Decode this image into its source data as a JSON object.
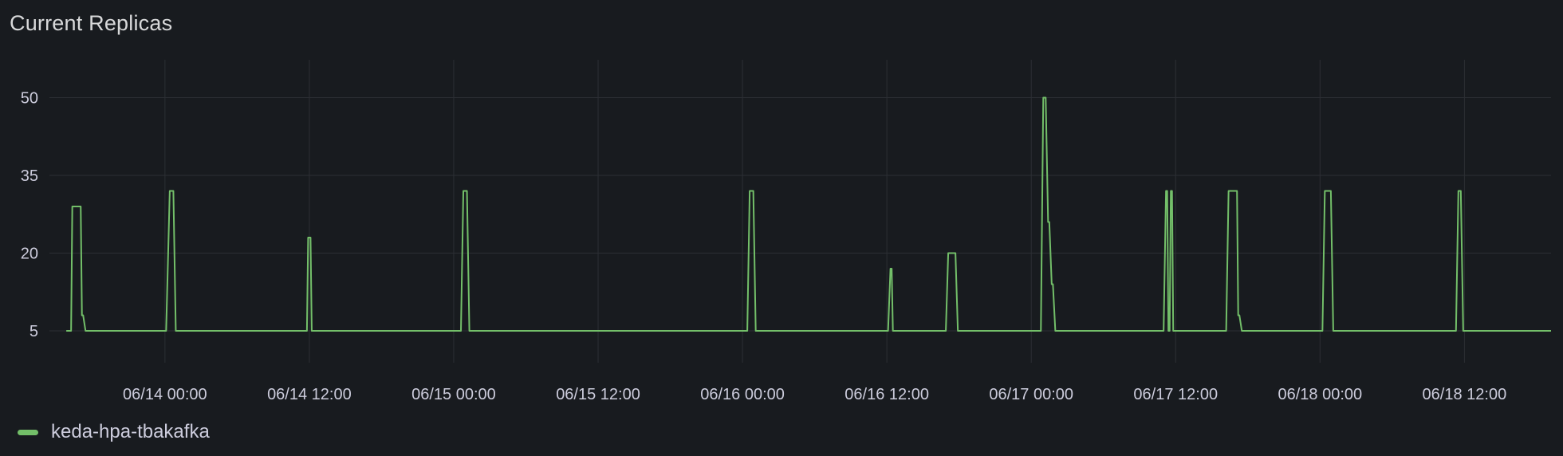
{
  "panel": {
    "title": "Current Replicas"
  },
  "colors": {
    "background": "#181b1f",
    "grid": "#2c2f34",
    "series": "#73bf69",
    "text": "#ccccdc"
  },
  "chart_data": {
    "type": "line",
    "title": "Current Replicas",
    "xlabel": "",
    "ylabel": "",
    "x_unit": "hours since 06/13 12:00",
    "xlim": [
      0,
      124.8
    ],
    "ylim": [
      0,
      57
    ],
    "grid": true,
    "legend_position": "bottom-left",
    "y_ticks": [
      {
        "value": 5,
        "label": "5"
      },
      {
        "value": 20,
        "label": "20"
      },
      {
        "value": 35,
        "label": "35"
      },
      {
        "value": 50,
        "label": "50"
      }
    ],
    "x_ticks": [
      {
        "value": 9.6,
        "label": "06/14 00:00"
      },
      {
        "value": 21.6,
        "label": "06/14 12:00"
      },
      {
        "value": 33.6,
        "label": "06/15 00:00"
      },
      {
        "value": 45.6,
        "label": "06/15 12:00"
      },
      {
        "value": 57.6,
        "label": "06/16 00:00"
      },
      {
        "value": 69.6,
        "label": "06/16 12:00"
      },
      {
        "value": 81.6,
        "label": "06/17 00:00"
      },
      {
        "value": 93.6,
        "label": "06/17 12:00"
      },
      {
        "value": 105.6,
        "label": "06/18 00:00"
      },
      {
        "value": 117.6,
        "label": "06/18 12:00"
      }
    ],
    "series": [
      {
        "name": "keda-hpa-tbakafka",
        "points": [
          [
            1.4,
            5
          ],
          [
            1.8,
            5
          ],
          [
            1.9,
            29
          ],
          [
            2.6,
            29
          ],
          [
            2.7,
            8
          ],
          [
            2.8,
            8
          ],
          [
            3.0,
            5
          ],
          [
            9.7,
            5
          ],
          [
            10.0,
            32
          ],
          [
            10.3,
            32
          ],
          [
            10.5,
            5
          ],
          [
            21.4,
            5
          ],
          [
            21.5,
            23
          ],
          [
            21.7,
            23
          ],
          [
            21.8,
            5
          ],
          [
            34.2,
            5
          ],
          [
            34.4,
            32
          ],
          [
            34.7,
            32
          ],
          [
            34.9,
            5
          ],
          [
            58.0,
            5
          ],
          [
            58.2,
            32
          ],
          [
            58.5,
            32
          ],
          [
            58.7,
            5
          ],
          [
            69.7,
            5
          ],
          [
            69.9,
            17
          ],
          [
            70.0,
            17
          ],
          [
            70.1,
            5
          ],
          [
            74.5,
            5
          ],
          [
            74.7,
            20
          ],
          [
            75.3,
            20
          ],
          [
            75.5,
            5
          ],
          [
            82.4,
            5
          ],
          [
            82.6,
            50
          ],
          [
            82.8,
            50
          ],
          [
            83.0,
            26
          ],
          [
            83.1,
            26
          ],
          [
            83.3,
            14
          ],
          [
            83.4,
            14
          ],
          [
            83.6,
            5
          ],
          [
            92.6,
            5
          ],
          [
            92.8,
            32
          ],
          [
            92.9,
            32
          ],
          [
            93.0,
            5
          ],
          [
            93.1,
            5
          ],
          [
            93.2,
            32
          ],
          [
            93.3,
            32
          ],
          [
            93.4,
            5
          ],
          [
            97.8,
            5
          ],
          [
            98.0,
            32
          ],
          [
            98.7,
            32
          ],
          [
            98.8,
            8
          ],
          [
            98.9,
            8
          ],
          [
            99.1,
            5
          ],
          [
            105.8,
            5
          ],
          [
            106.0,
            32
          ],
          [
            106.5,
            32
          ],
          [
            106.7,
            5
          ],
          [
            116.9,
            5
          ],
          [
            117.1,
            32
          ],
          [
            117.3,
            32
          ],
          [
            117.5,
            5
          ],
          [
            124.8,
            5
          ]
        ]
      }
    ]
  }
}
